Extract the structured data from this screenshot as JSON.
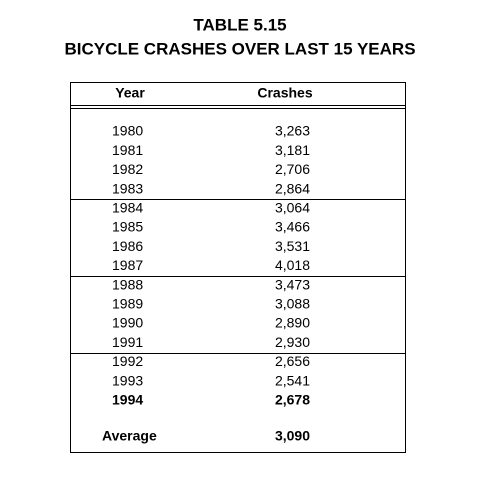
{
  "header": {
    "title": "TABLE 5.15",
    "subtitle": "BICYCLE CRASHES OVER LAST 15 YEARS"
  },
  "table": {
    "columns": [
      "Year",
      "Crashes"
    ],
    "rows": [
      [
        "1980",
        "3,263"
      ],
      [
        "1981",
        "3,181"
      ],
      [
        "1982",
        "2,706"
      ],
      [
        "1983",
        "2,864"
      ],
      [
        "1984",
        "3,064"
      ],
      [
        "1985",
        "3,466"
      ],
      [
        "1986",
        "3,531"
      ],
      [
        "1987",
        "4,018"
      ],
      [
        "1988",
        "3,473"
      ],
      [
        "1989",
        "3,088"
      ],
      [
        "1990",
        "2,890"
      ],
      [
        "1991",
        "2,930"
      ],
      [
        "1992",
        "2,656"
      ],
      [
        "1993",
        "2,541"
      ],
      [
        "1994",
        "2,678"
      ]
    ],
    "average": [
      "Average",
      "3,090"
    ]
  }
}
